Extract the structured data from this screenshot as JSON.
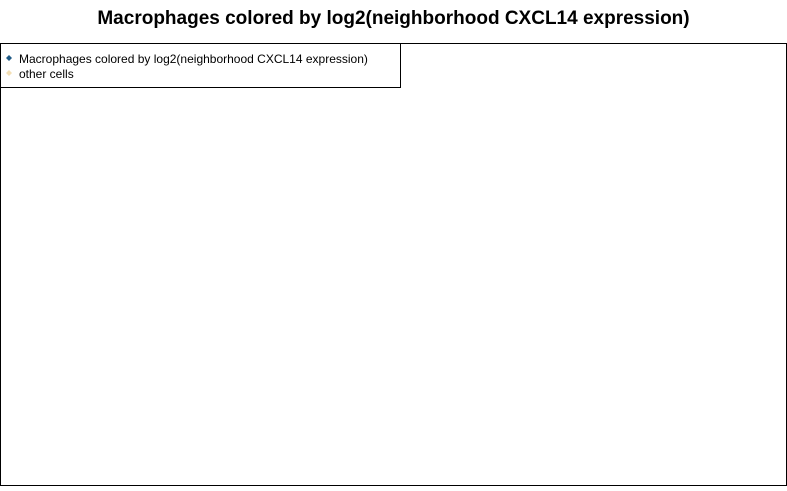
{
  "title": "Macrophages colored by log2(neighborhood CXCL14 expression)",
  "legend": {
    "placement": "top-left",
    "items": [
      {
        "label": "Macrophages colored by log2(neighborhood CXCL14 expression)",
        "color": "#1f5a86"
      },
      {
        "label": "other cells",
        "color": "#f3dfb5"
      }
    ]
  },
  "chart_data": {
    "type": "scatter",
    "title": "Macrophages colored by log2(neighborhood CXCL14 expression)",
    "xlabel": "",
    "ylabel": "",
    "axes_visible": false,
    "grid": false,
    "legend_placement": "top-left",
    "series": [
      {
        "name": "Macrophages colored by log2(neighborhood CXCL14 expression)",
        "marker": "diamond",
        "color_scale": [
          "#c7dff0",
          "#6aaed6",
          "#2b7bba",
          "#08306b"
        ]
      },
      {
        "name": "other cells",
        "marker": "diamond",
        "color": "#f3dfb5"
      }
    ]
  }
}
